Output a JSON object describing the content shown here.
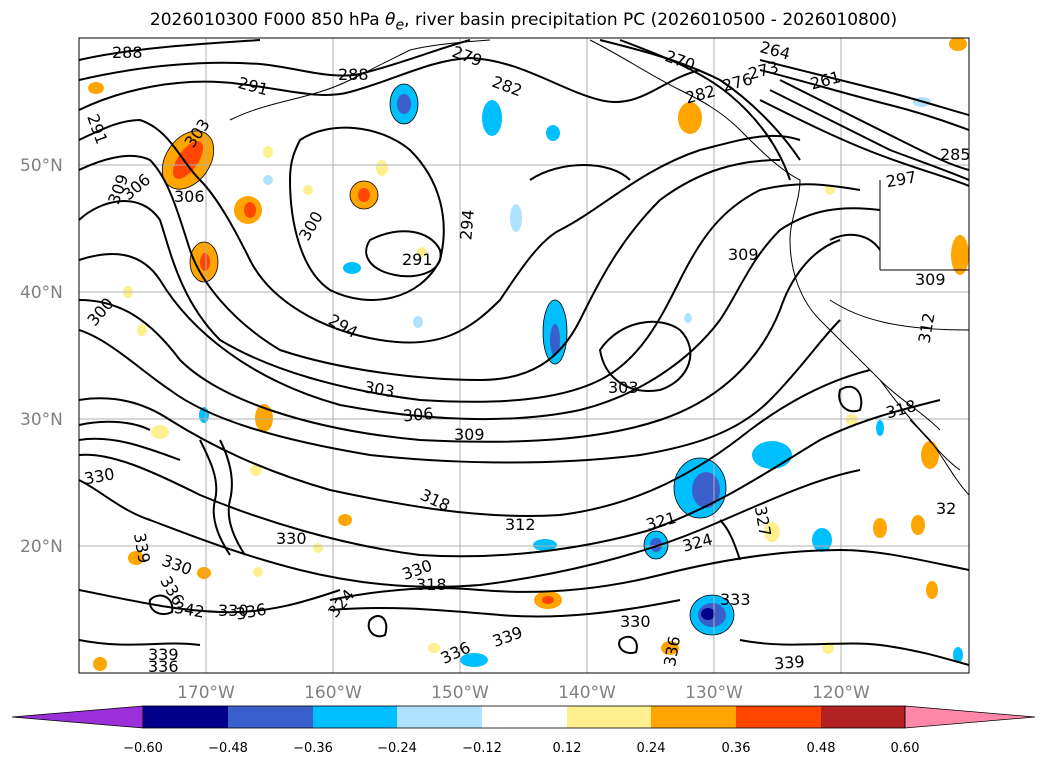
{
  "title": {
    "prefix": "2026010300 F000 850 hPa ",
    "symbol": "θ",
    "subscript": "e",
    "suffix": ", river basin precipitation PC (2026010500 - 2026010800)"
  },
  "axes": {
    "lat_labels": [
      "50°N",
      "40°N",
      "30°N",
      "20°N"
    ],
    "lon_labels": [
      "170°W",
      "160°W",
      "150°W",
      "140°W",
      "130°W",
      "120°W"
    ]
  },
  "colorbar": {
    "ticks": [
      "−0.60",
      "−0.48",
      "−0.36",
      "−0.24",
      "−0.12",
      "0.12",
      "0.24",
      "0.36",
      "0.48",
      "0.60"
    ],
    "colors": [
      "#9b30d9",
      "#00008b",
      "#3a5fcd",
      "#00bfff",
      "#b0e2ff",
      "#ffffff",
      "#fff08f",
      "#ffa500",
      "#ff4500",
      "#b22222",
      "#ff88aa"
    ]
  },
  "contour_labels": [
    "288",
    "279",
    "282",
    "270",
    "264",
    "276",
    "273",
    "261",
    "291",
    "288",
    "291",
    "282",
    "303",
    "306",
    "309",
    "306",
    "300",
    "294",
    "291",
    "297",
    "309",
    "285",
    "309",
    "300",
    "294",
    "312",
    "303",
    "303",
    "306",
    "309",
    "318",
    "330",
    "318",
    "312",
    "321",
    "324",
    "327",
    "330",
    "330",
    "339",
    "333",
    "330",
    "318",
    "330",
    "324",
    "339",
    "336",
    "336",
    "339",
    "336",
    "339",
    "330",
    "342",
    "336",
    "336",
    "32"
  ],
  "shading_colors": {
    "orange": "#ffa500",
    "red": "#ff4500",
    "yellow": "#fff08f",
    "lightblue": "#b0e2ff",
    "blue": "#00bfff",
    "royal": "#3a5fcd",
    "navy": "#00008b"
  }
}
